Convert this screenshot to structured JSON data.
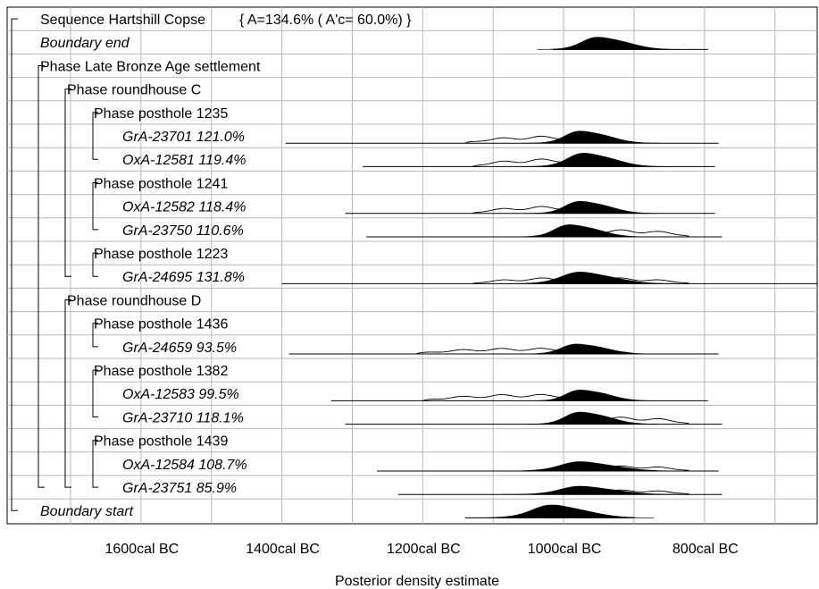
{
  "chart_data": {
    "type": "area",
    "xlabel": "Posterior density estimate",
    "x_range_bc": [
      1790,
      640
    ],
    "ticks": [
      {
        "label": "1600cal BC",
        "value": 1600
      },
      {
        "label": "1400cal BC",
        "value": 1400
      },
      {
        "label": "1200cal BC",
        "value": 1200
      },
      {
        "label": "1000cal BC",
        "value": 1000
      },
      {
        "label": "800cal BC",
        "value": 800
      }
    ],
    "grid": true,
    "rows": [
      {
        "label": "Sequence Hartshill Copse",
        "suffix": "{ A=134.6% ( A'c= 60.0%) }",
        "italic": false,
        "level": 0,
        "kind": "header"
      },
      {
        "label": "Boundary end",
        "italic": true,
        "level": 1,
        "kind": "dist",
        "line": [
          1015,
          795
        ],
        "peak": 935,
        "spread": 32,
        "height": 0.55
      },
      {
        "label": "Phase Late Bronze Age settlement",
        "italic": false,
        "level": 1,
        "kind": "header"
      },
      {
        "label": "Phase roundhouse C",
        "italic": false,
        "level": 2,
        "kind": "header"
      },
      {
        "label": "Phase posthole 1235",
        "italic": false,
        "level": 3,
        "kind": "header"
      },
      {
        "label": "GrA-23701  121.0%",
        "italic": true,
        "level": 4,
        "kind": "dist",
        "line": [
          1395,
          780
        ],
        "peak": 960,
        "spread": 30,
        "height": 0.55,
        "prior_start": 1140,
        "prior_end": 900
      },
      {
        "label": "OxA-12581  119.4%",
        "italic": true,
        "level": 4,
        "kind": "dist",
        "line": [
          1285,
          785
        ],
        "peak": 955,
        "spread": 32,
        "height": 0.6,
        "prior_start": 1130,
        "prior_end": 900
      },
      {
        "label": "Phase posthole 1241",
        "italic": false,
        "level": 3,
        "kind": "header"
      },
      {
        "label": "OxA-12582  118.4%",
        "italic": true,
        "level": 4,
        "kind": "dist",
        "line": [
          1310,
          785
        ],
        "peak": 960,
        "spread": 30,
        "height": 0.55,
        "prior_start": 1130,
        "prior_end": 900
      },
      {
        "label": "GrA-23750  110.6%",
        "italic": true,
        "level": 4,
        "kind": "dist",
        "line": [
          1280,
          775
        ],
        "peak": 975,
        "spread": 30,
        "height": 0.55,
        "prior_start": 1010,
        "prior_end": 820
      },
      {
        "label": "Phase posthole 1223",
        "italic": false,
        "level": 3,
        "kind": "header"
      },
      {
        "label": "GrA-24695  131.8%",
        "italic": true,
        "level": 4,
        "kind": "dist",
        "line": [
          1400,
          640
        ],
        "peak": 960,
        "spread": 38,
        "height": 0.5,
        "prior_start": 1130,
        "prior_end": 820
      },
      {
        "label": "Phase roundhouse D",
        "italic": false,
        "level": 2,
        "kind": "header"
      },
      {
        "label": "Phase posthole 1436",
        "italic": false,
        "level": 3,
        "kind": "header"
      },
      {
        "label": "GrA-24659  93.5%",
        "italic": true,
        "level": 4,
        "kind": "dist",
        "line": [
          1390,
          780
        ],
        "peak": 965,
        "spread": 30,
        "height": 0.45,
        "prior_start": 1210,
        "prior_end": 900
      },
      {
        "label": "Phase posthole 1382",
        "italic": false,
        "level": 3,
        "kind": "header"
      },
      {
        "label": "OxA-12583  99.5%",
        "italic": true,
        "level": 4,
        "kind": "dist",
        "line": [
          1330,
          795
        ],
        "peak": 960,
        "spread": 28,
        "height": 0.5,
        "prior_start": 1200,
        "prior_end": 900
      },
      {
        "label": "GrA-23710  118.1%",
        "italic": true,
        "level": 4,
        "kind": "dist",
        "line": [
          1310,
          775
        ],
        "peak": 960,
        "spread": 30,
        "height": 0.55,
        "prior_start": 1010,
        "prior_end": 820
      },
      {
        "label": "Phase posthole 1439",
        "italic": false,
        "level": 3,
        "kind": "header"
      },
      {
        "label": "OxA-12584  108.7%",
        "italic": true,
        "level": 4,
        "kind": "dist",
        "line": [
          1265,
          780
        ],
        "peak": 960,
        "spread": 40,
        "height": 0.4,
        "prior_start": 1010,
        "prior_end": 820
      },
      {
        "label": "GrA-23751  85.9%",
        "italic": true,
        "level": 4,
        "kind": "dist",
        "line": [
          1235,
          775
        ],
        "peak": 960,
        "spread": 40,
        "height": 0.35,
        "prior_start": 1010,
        "prior_end": 820
      },
      {
        "label": "Boundary start",
        "italic": true,
        "level": 1,
        "kind": "dist",
        "line": [
          1140,
          900
        ],
        "peak": 1000,
        "spread": 40,
        "height": 0.55
      }
    ]
  }
}
